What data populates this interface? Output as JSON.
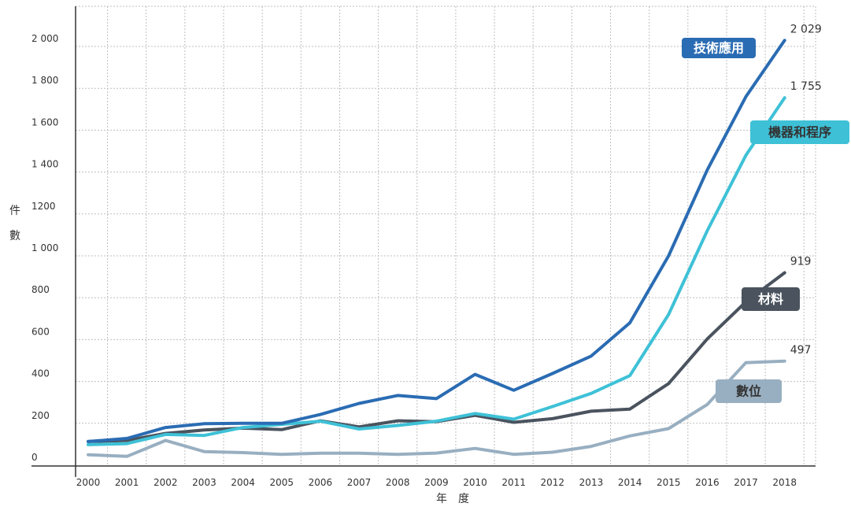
{
  "chart_data": {
    "type": "line",
    "xlabel": "年　度",
    "ylabel": "件數",
    "ylim": [
      0,
      2200
    ],
    "yticks": [
      0,
      200,
      400,
      600,
      800,
      1000,
      1200,
      1400,
      1600,
      1800,
      2000
    ],
    "ytick_labels": [
      "0",
      "200",
      "400",
      "600",
      "800",
      "1 000",
      "1200",
      "1 400",
      "1 600",
      "1 800",
      "2 000"
    ],
    "categories": [
      "2000",
      "2001",
      "2002",
      "2003",
      "2004",
      "2005",
      "2006",
      "2007",
      "2008",
      "2009",
      "2010",
      "2011",
      "2012",
      "2013",
      "2014",
      "2015",
      "2016",
      "2017",
      "2018"
    ],
    "grid": true,
    "series": [
      {
        "name": "技術應用",
        "color": "#2a6cb3",
        "label_color": "#ffffff",
        "end_label": "2 029",
        "values": [
          113,
          128,
          180,
          198,
          200,
          200,
          242,
          295,
          333,
          318,
          434,
          358,
          438,
          521,
          680,
          1000,
          1410,
          1760,
          2029
        ]
      },
      {
        "name": "機器和程序",
        "color": "#3ec1d7",
        "label_color": "#333333",
        "end_label": "1 755",
        "values": [
          98,
          103,
          147,
          142,
          180,
          195,
          210,
          173,
          190,
          210,
          247,
          220,
          280,
          343,
          428,
          720,
          1120,
          1480,
          1755
        ]
      },
      {
        "name": "材料",
        "color": "#4a535e",
        "label_color": "#ffffff",
        "end_label": "919",
        "values": [
          113,
          118,
          152,
          168,
          177,
          170,
          212,
          183,
          212,
          208,
          238,
          205,
          222,
          258,
          268,
          390,
          603,
          780,
          919
        ]
      },
      {
        "name": "數位",
        "color": "#98afc1",
        "label_color": "#333333",
        "end_label": "497",
        "values": [
          50,
          42,
          118,
          65,
          60,
          52,
          57,
          57,
          52,
          58,
          80,
          52,
          62,
          90,
          140,
          175,
          290,
          490,
          497
        ]
      }
    ]
  }
}
